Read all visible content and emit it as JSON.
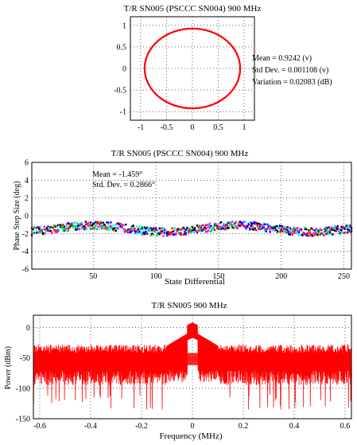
{
  "colors": {
    "accent": "#ff0000",
    "series_multi": [
      "#ff0000",
      "#00ffff",
      "#ff00ff",
      "#000000",
      "#00cc00",
      "#0000ff"
    ]
  },
  "chart_data": [
    {
      "type": "scatter",
      "title": "T/R SN005 (PSCCC SN004) 900 MHz",
      "xlabel": "",
      "ylabel": "",
      "xlim": [
        -1.2,
        1.2
      ],
      "ylim": [
        -1.2,
        1.2
      ],
      "xticks": [
        -1,
        -0.5,
        0,
        0.5,
        1
      ],
      "yticks": [
        1,
        0.5,
        0,
        -0.5,
        -1
      ],
      "radius": 0.9242,
      "grid": true,
      "annotations": [
        "Mean = 0.9242 (v)",
        "Std Dev. = 0.001108 (v)",
        "Variation = 0.02083 (dB)"
      ]
    },
    {
      "type": "scatter",
      "title": "T/R SN005 (PSCCC SN004) 900 MHz",
      "xlabel": "State Differential",
      "ylabel": "Phase Step Size (deg)",
      "xlim": [
        1,
        256
      ],
      "ylim": [
        -6,
        6
      ],
      "xticks": [
        50,
        100,
        150,
        200,
        250
      ],
      "yticks": [
        6,
        4,
        2,
        0,
        -2,
        -4,
        -6
      ],
      "mean": -1.459,
      "grid": true,
      "annotations": [
        "Mean = -1.459°",
        "Std. Dev. = 0.2866°"
      ]
    },
    {
      "type": "line",
      "title": "T/R SN005 900 MHz",
      "xlabel": "Frequency (MHz)",
      "ylabel": "Power (dBm)",
      "xlim": [
        -0.625,
        0.625
      ],
      "ylim": [
        -150,
        20
      ],
      "xticks": [
        -0.6,
        -0.4,
        -0.2,
        0,
        0.2,
        0.4,
        0.6
      ],
      "yticks": [
        0,
        -50,
        -100,
        -150
      ],
      "noise_floor": -50,
      "peak": 8,
      "grid": true
    }
  ]
}
